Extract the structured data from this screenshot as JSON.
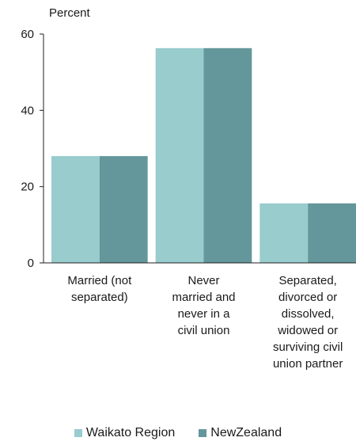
{
  "chart_data": {
    "type": "bar",
    "ylabel": "Percent",
    "xlabel": "",
    "title": "",
    "ylim": [
      0,
      60
    ],
    "yticks": [
      0,
      20,
      40,
      60
    ],
    "grid": false,
    "legend_position": "bottom",
    "categories": [
      "Married (not\nseparated)",
      "Never\nmarried and\nnever in a\ncivil union",
      "Separated,\ndivorced or\ndissolved,\nwidowed or\nsurviving civil\nunion partner"
    ],
    "series": [
      {
        "name": "Waikato Region",
        "color": "#98cccd",
        "values": [
          28.0,
          56.3,
          15.6
        ]
      },
      {
        "name": "NewZealand",
        "color": "#63979b",
        "values": [
          28.0,
          56.3,
          15.6
        ]
      }
    ]
  }
}
